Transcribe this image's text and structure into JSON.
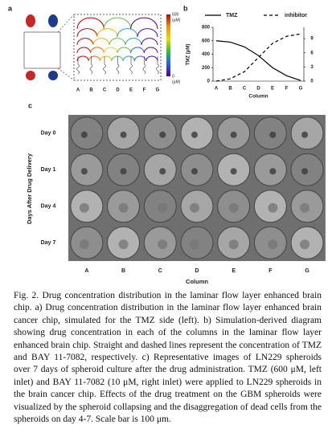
{
  "panel_a": {
    "label": "a",
    "colorbar": {
      "top": "600",
      "top_unit": "(μM)",
      "bottom": "0",
      "bottom_unit": "(μM)"
    },
    "columns": [
      "A",
      "B",
      "C",
      "D",
      "E",
      "F",
      "G"
    ]
  },
  "chart_data": {
    "type": "line",
    "label": "b",
    "x_label": "Column",
    "y_label": "TMZ (μM)",
    "categories": [
      "A",
      "B",
      "C",
      "D",
      "E",
      "F",
      "G"
    ],
    "series": [
      {
        "name": "TMZ",
        "color": "#000000",
        "line_style": "solid",
        "values": [
          600,
          580,
          510,
          380,
          200,
          80,
          10
        ]
      },
      {
        "name": "inhibitor",
        "color": "#000000",
        "line_style": "dashed",
        "axis": "y2",
        "values": [
          0,
          0.5,
          2,
          5,
          8,
          9.5,
          10
        ]
      }
    ],
    "ylim": [
      0,
      800
    ],
    "yticks": [
      0,
      200,
      400,
      600,
      800
    ],
    "y2lim": [
      0,
      11.4
    ],
    "y2ticks": [
      0,
      3,
      6,
      9
    ]
  },
  "panel_c": {
    "label": "c",
    "y_label": "Days After Drug Delivery",
    "x_label": "Column",
    "rows": [
      "Day 0",
      "Day 1",
      "Day 4",
      "Day 7"
    ],
    "columns": [
      "A",
      "B",
      "C",
      "D",
      "E",
      "F",
      "G"
    ]
  },
  "caption": "Fig. 2. Drug concentration distribution in the laminar flow layer enhanced brain chip. a) Drug concentration distribution in the laminar flow layer enhanced brain cancer chip, simulated for the TMZ side (left). b) Simulation-derived diagram showing drug concentration in each of the columns in the laminar flow layer enhanced brain chip. Straight and dashed lines represent the concentration of TMZ and BAY 11-7082, respectively. c) Representative images of LN229 spheroids over 7 days of spheroid culture after the drug administration. TMZ (600 μM, left inlet) and BAY 11-7082 (10 μM, right inlet) were applied to LN229 spheroids in the brain cancer chip. Effects of the drug treatment on the GBM spheroids were visualized by the spheroid collapsing and the disaggregation of dead cells from the spheroids on day 4-7. Scale bar is 100 μm."
}
